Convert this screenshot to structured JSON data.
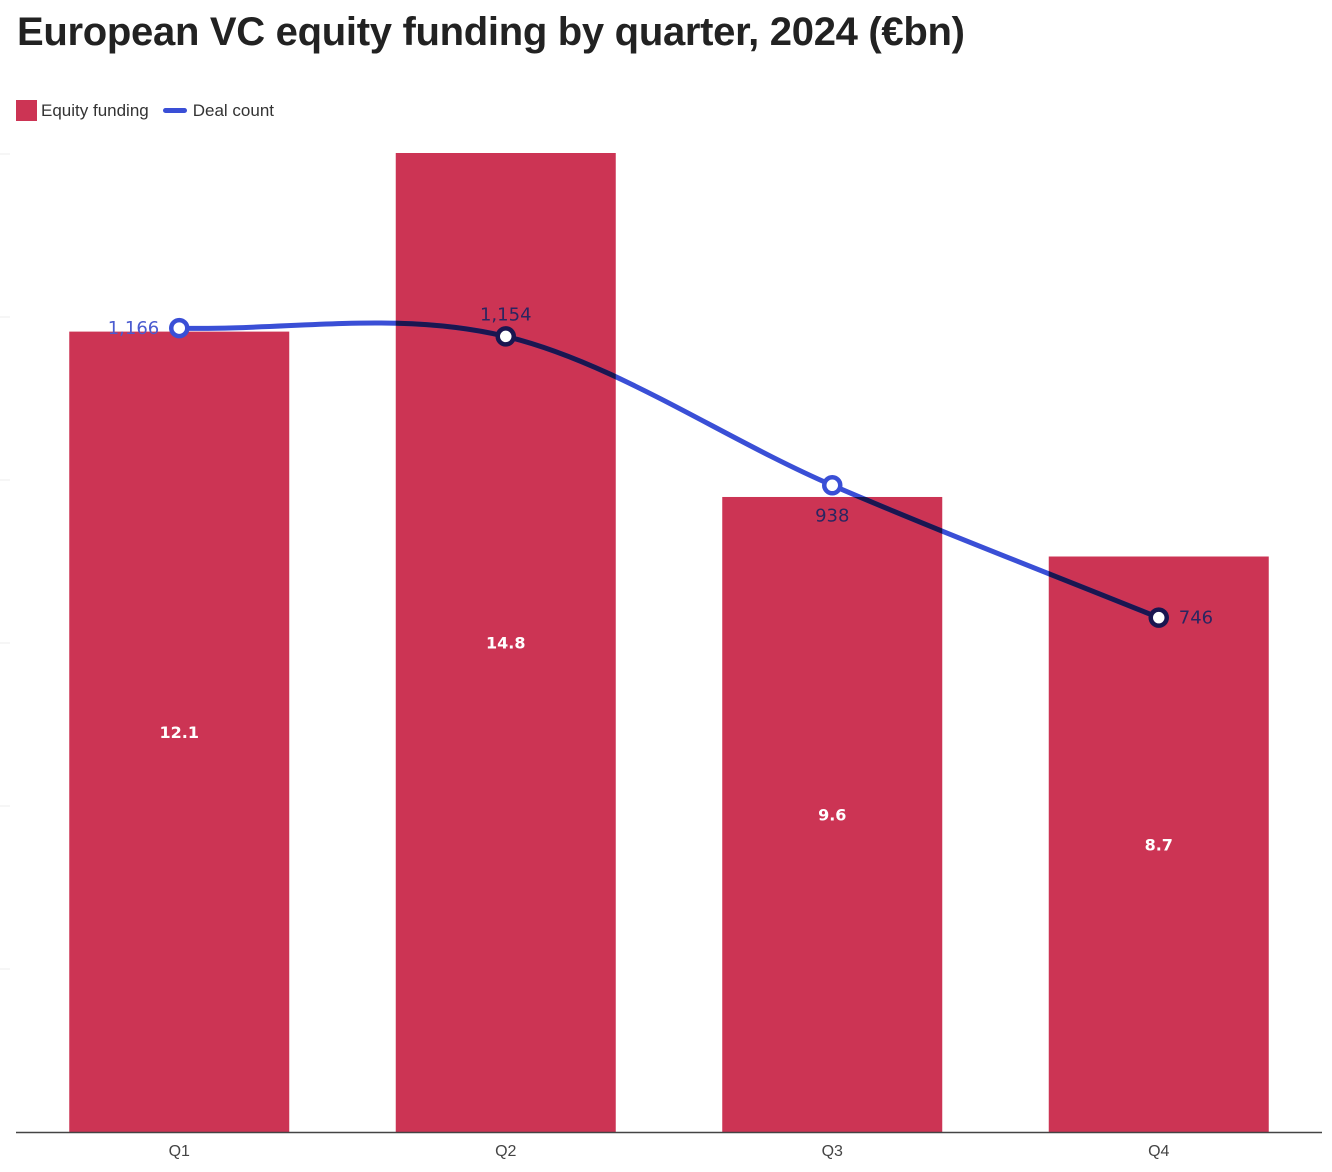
{
  "chart_data": {
    "type": "bar",
    "title": "European VC equity funding by quarter, 2024 (€bn)",
    "categories": [
      "Q1",
      "Q2",
      "Q3",
      "Q4"
    ],
    "series": [
      {
        "name": "Equity funding",
        "type": "bar",
        "values": [
          12.1,
          14.8,
          9.6,
          8.7
        ],
        "labels": [
          "12.1",
          "14.8",
          "9.6",
          "8.7"
        ],
        "color": "#cc3454"
      },
      {
        "name": "Deal count",
        "type": "line",
        "values": [
          1166,
          1154,
          938,
          746
        ],
        "labels": [
          "1,166",
          "1,154",
          "938",
          "746"
        ],
        "color": "#3a4fd6"
      }
    ],
    "bar_ylim": [
      0,
      14.8
    ],
    "line_ylim": [
      0,
      1420
    ],
    "legend_position": "top-left",
    "grid": false,
    "xlabel": "",
    "ylabel": ""
  }
}
